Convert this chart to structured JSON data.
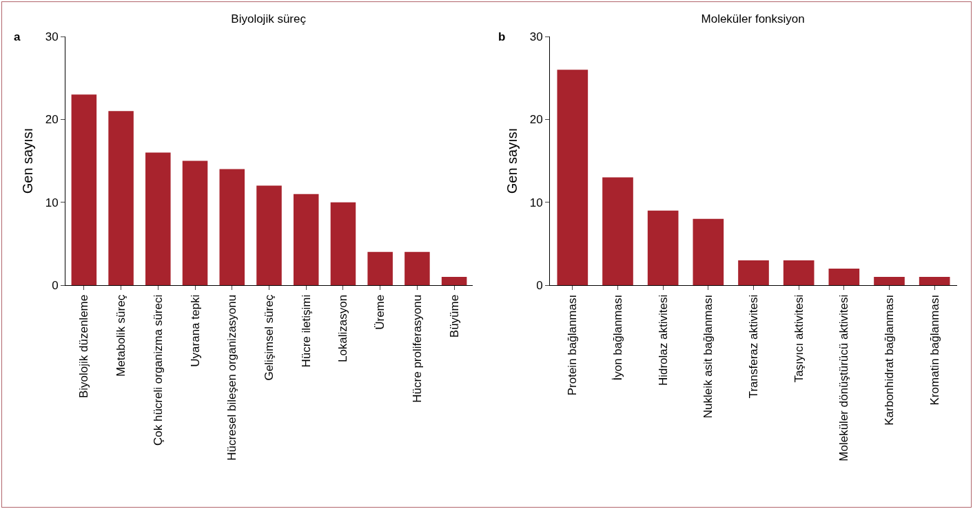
{
  "chart_data": [
    {
      "type": "bar",
      "title": "Biyolojik süreç",
      "ylabel": "Gen sayısı",
      "annotations": [
        "a"
      ],
      "categories": [
        "Biyolojik düzenleme",
        "Metabolik süreç",
        "Çok hücreli organizma süreci",
        "Uyarana tepki",
        "Hücresel bileşen organizasyonu",
        "Gelişimsel süreç",
        "Hücre iletişimi",
        "Lokalizasyon",
        "Üreme",
        "Hücre proliferasyonu",
        "Büyüme"
      ],
      "values": [
        23,
        21,
        16,
        15,
        14,
        12,
        11,
        10,
        4,
        4,
        1
      ],
      "color": "#a8232d",
      "ylim": [
        0,
        30
      ],
      "yticks": [
        0,
        10,
        20,
        30
      ],
      "grid": false
    },
    {
      "type": "bar",
      "title": "Moleküler fonksiyon",
      "ylabel": "Gen sayısı",
      "annotations": [
        "b"
      ],
      "categories": [
        "Protein bağlanması",
        "İyon bağlanması",
        "Hidrolaz aktivitesi",
        "Nukleik asit bağlanması",
        "Transferaz aktivitesi",
        "Taşıyıcı aktivitesi",
        "Moleküler dönüştürücü aktivitesi",
        "Karbonhidrat bağlanması",
        "Kromatin bağlanması"
      ],
      "values": [
        26,
        13,
        9,
        8,
        3,
        3,
        2,
        1,
        1
      ],
      "color": "#a8232d",
      "ylim": [
        0,
        30
      ],
      "yticks": [
        0,
        10,
        20,
        30
      ],
      "grid": false
    }
  ]
}
